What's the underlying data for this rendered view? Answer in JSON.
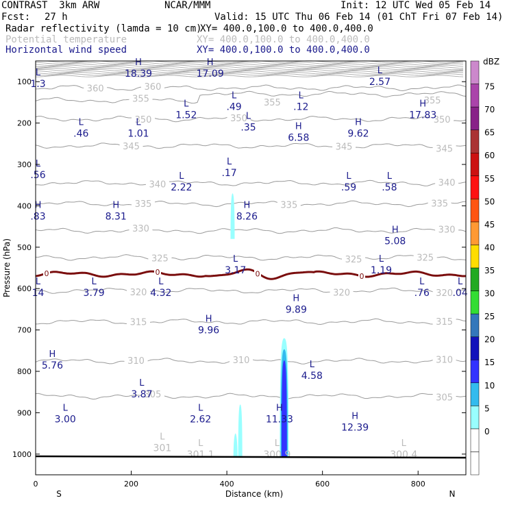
{
  "header": {
    "title": "CONTRAST  3km ARW",
    "org": "NCAR/MMM",
    "init": "Init: 12 UTC Wed 05 Feb 14",
    "fcst_label": "Fcst:",
    "fcst_value": "27 h",
    "valid": "Valid: 15 UTC Thu 06 Feb 14 (01 ChT Fri 07 Feb 14)",
    "fields": [
      {
        "name": "Radar reflectivity (lamda = 10 cm)",
        "xy": "XY= 400.0,100.0 to 400.0,400.0",
        "color": "#000000"
      },
      {
        "name": "Potential temperature",
        "xy": "XY= 400.0,100.0 to 400.0,400.0",
        "color": "#bbbbbb"
      },
      {
        "name": "Horizontal wind speed",
        "xy": "XY= 400.0,100.0 to 400.0,400.0",
        "color": "#1a1a8c"
      }
    ]
  },
  "chart_data": {
    "type": "cross-section",
    "xlabel": "Distance (km)",
    "ylabel": "Pressure (hPa)",
    "xlim": [
      0,
      900
    ],
    "ylim": [
      1050,
      50
    ],
    "x_ticks": [
      "0",
      "200",
      "400",
      "600",
      "800"
    ],
    "x_tick_values": [
      0,
      200,
      400,
      600,
      800
    ],
    "y_ticks": [
      "100",
      "200",
      "300",
      "400",
      "500",
      "600",
      "700",
      "800",
      "900",
      "1000"
    ],
    "y_tick_values": [
      100,
      200,
      300,
      400,
      500,
      600,
      700,
      800,
      900,
      1000
    ],
    "direction_left": "S",
    "direction_right": "N",
    "theta_contours": [
      {
        "theta": 360,
        "p": 115,
        "labels": [
          "360",
          "360"
        ],
        "label_x": [
          125,
          245
        ]
      },
      {
        "theta": 355,
        "p": 145,
        "labels": [
          "355",
          "355",
          "355"
        ],
        "label_x": [
          220,
          495,
          830
        ]
      },
      {
        "theta": 350,
        "p": 190,
        "labels": [
          "350",
          "350",
          "350"
        ],
        "label_x": [
          225,
          425,
          850
        ]
      },
      {
        "theta": 345,
        "p": 255,
        "labels": [
          "345",
          "345",
          "345"
        ],
        "label_x": [
          200,
          645,
          855
        ]
      },
      {
        "theta": 340,
        "p": 345,
        "labels": [
          "340",
          "340"
        ],
        "label_x": [
          255,
          860
        ]
      },
      {
        "theta": 335,
        "p": 395,
        "labels": [
          "335",
          "335",
          "335"
        ],
        "label_x": [
          225,
          530,
          845
        ]
      },
      {
        "theta": 330,
        "p": 460,
        "labels": [
          "330",
          "330"
        ],
        "label_x": [
          220,
          860
        ]
      },
      {
        "theta": 325,
        "p": 525,
        "labels": [
          "325",
          "325",
          "325"
        ],
        "label_x": [
          260,
          665,
          815
        ]
      },
      {
        "theta": 320,
        "p": 605,
        "labels": [
          "320",
          "320",
          "320"
        ],
        "label_x": [
          215,
          640,
          855
        ]
      },
      {
        "theta": 315,
        "p": 680,
        "labels": [
          "315",
          "315"
        ],
        "label_x": [
          215,
          855
        ]
      },
      {
        "theta": 310,
        "p": 775,
        "labels": [
          "310",
          "310",
          "310"
        ],
        "label_x": [
          210,
          430,
          855
        ]
      },
      {
        "theta": 305,
        "p": 860,
        "labels": [
          "305",
          "305"
        ],
        "label_x": [
          245,
          855
        ]
      }
    ],
    "zero_contour": {
      "label": "0",
      "p": 565
    },
    "wind_extrema": [
      {
        "type": "L",
        "value": "1.3",
        "x": 5,
        "p": 105
      },
      {
        "type": "H",
        "value": "18.39",
        "x": 215,
        "p": 80
      },
      {
        "type": "H",
        "value": "17.09",
        "x": 365,
        "p": 80
      },
      {
        "type": "L",
        "value": "2.57",
        "x": 720,
        "p": 100
      },
      {
        "type": "L",
        "value": ".49",
        "x": 415,
        "p": 160
      },
      {
        "type": "L",
        "value": ".12",
        "x": 555,
        "p": 160
      },
      {
        "type": "L",
        "value": "1.52",
        "x": 315,
        "p": 180
      },
      {
        "type": "H",
        "value": "17.83",
        "x": 810,
        "p": 180
      },
      {
        "type": "L",
        "value": ".46",
        "x": 95,
        "p": 225
      },
      {
        "type": "L",
        "value": "1.01",
        "x": 215,
        "p": 225
      },
      {
        "type": "L",
        "value": ".35",
        "x": 445,
        "p": 210
      },
      {
        "type": "H",
        "value": "6.58",
        "x": 550,
        "p": 235
      },
      {
        "type": "H",
        "value": "9.62",
        "x": 675,
        "p": 225
      },
      {
        "type": "L",
        "value": ".56",
        "x": 5,
        "p": 325
      },
      {
        "type": "L",
        "value": ".17",
        "x": 405,
        "p": 320
      },
      {
        "type": "L",
        "value": "2.22",
        "x": 305,
        "p": 355
      },
      {
        "type": "L",
        "value": ".59",
        "x": 655,
        "p": 355
      },
      {
        "type": "L",
        "value": ".58",
        "x": 740,
        "p": 355
      },
      {
        "type": "H",
        "value": ".83",
        "x": 5,
        "p": 425
      },
      {
        "type": "H",
        "value": "8.31",
        "x": 168,
        "p": 425
      },
      {
        "type": "H",
        "value": "8.26",
        "x": 442,
        "p": 425
      },
      {
        "type": "H",
        "value": "5.08",
        "x": 752,
        "p": 485
      },
      {
        "type": "L",
        "value": "3.17",
        "x": 418,
        "p": 555
      },
      {
        "type": "L",
        "value": "1.19",
        "x": 723,
        "p": 555
      },
      {
        "type": "L",
        "value": "14",
        "x": 5,
        "p": 610
      },
      {
        "type": "L",
        "value": "3.79",
        "x": 122,
        "p": 610
      },
      {
        "type": "L",
        "value": "4.32",
        "x": 262,
        "p": 610
      },
      {
        "type": "L",
        "value": ".76",
        "x": 808,
        "p": 610
      },
      {
        "type": "L",
        "value": ".04",
        "x": 888,
        "p": 610
      },
      {
        "type": "H",
        "value": "9.89",
        "x": 545,
        "p": 650
      },
      {
        "type": "H",
        "value": "9.96",
        "x": 362,
        "p": 700
      },
      {
        "type": "H",
        "value": "5.76",
        "x": 35,
        "p": 785
      },
      {
        "type": "L",
        "value": "4.58",
        "x": 578,
        "p": 810
      },
      {
        "type": "L",
        "value": "3.87",
        "x": 222,
        "p": 855
      },
      {
        "type": "L",
        "value": "3.00",
        "x": 62,
        "p": 915
      },
      {
        "type": "L",
        "value": "2.62",
        "x": 345,
        "p": 915
      },
      {
        "type": "H",
        "value": "11.33",
        "x": 510,
        "p": 915
      },
      {
        "type": "H",
        "value": "12.39",
        "x": 668,
        "p": 935
      }
    ],
    "theta_extrema": [
      {
        "type": "L",
        "value": "301",
        "x": 265,
        "p": 985
      },
      {
        "type": "L",
        "value": "301.1",
        "x": 345,
        "p": 1000
      },
      {
        "type": "L",
        "value": "300.9",
        "x": 505,
        "p": 1000
      },
      {
        "type": "L",
        "value": "300.4",
        "x": 770,
        "p": 1000
      }
    ],
    "reflectivity_cells": [
      {
        "x": 412,
        "p_top": 370,
        "p_bottom": 480,
        "dbz_max": 10
      },
      {
        "x": 520,
        "p_top": 720,
        "p_bottom": 1008,
        "dbz_max": 20
      },
      {
        "x": 428,
        "p_top": 880,
        "p_bottom": 1008,
        "dbz_max": 10
      },
      {
        "x": 418,
        "p_top": 950,
        "p_bottom": 1008,
        "dbz_max": 10
      }
    ],
    "colorbar": {
      "title": "dBZ",
      "levels": [
        "0",
        "5",
        "10",
        "15",
        "20",
        "25",
        "30",
        "35",
        "40",
        "45",
        "50",
        "55",
        "60",
        "65",
        "70",
        "75"
      ],
      "colors": [
        "#ffffff",
        "#ffffff",
        "#99ffff",
        "#33bbee",
        "#3333ff",
        "#1111bb",
        "#3377bb",
        "#33dd33",
        "#22aa22",
        "#ffdd00",
        "#ff9933",
        "#ff5511",
        "#ff1111",
        "#cc1111",
        "#aa3333",
        "#882288",
        "#aa44aa",
        "#cc88cc"
      ]
    }
  }
}
